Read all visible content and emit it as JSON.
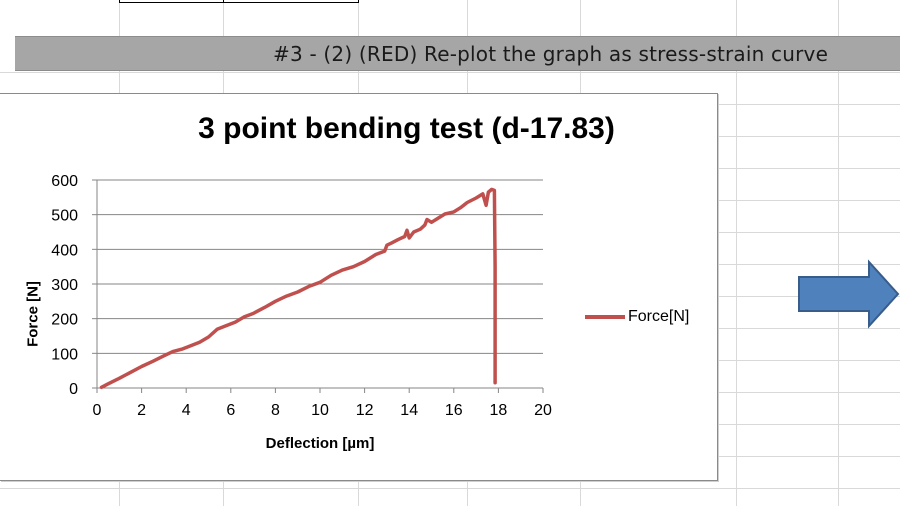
{
  "banner": {
    "text": "#3 - (2) (RED) Re-plot the graph as stress-strain curve"
  },
  "chart_data": {
    "type": "line",
    "title": "3 point bending test (d-17.83)",
    "xlabel": "Deflection [µm]",
    "ylabel": "Force [N]",
    "xlim": [
      0,
      20
    ],
    "ylim": [
      0,
      600
    ],
    "xticks": [
      0,
      2,
      4,
      6,
      8,
      10,
      12,
      14,
      16,
      18,
      20
    ],
    "yticks": [
      0,
      100,
      200,
      300,
      400,
      500,
      600
    ],
    "grid": "horizontal",
    "legend": "right",
    "series": [
      {
        "name": "Force[N]",
        "color": "#c0504d",
        "x": [
          0.2,
          0.5,
          1.0,
          1.5,
          2.0,
          2.5,
          3.0,
          3.4,
          3.8,
          4.2,
          4.6,
          5.0,
          5.4,
          5.8,
          6.2,
          6.6,
          7.0,
          7.5,
          8.0,
          8.5,
          9.0,
          9.5,
          10.0,
          10.5,
          11.0,
          11.5,
          12.0,
          12.5,
          12.9,
          13.0,
          13.2,
          13.5,
          13.8,
          13.9,
          14.0,
          14.2,
          14.5,
          14.7,
          14.8,
          15.0,
          15.3,
          15.6,
          16.0,
          16.3,
          16.6,
          17.0,
          17.3,
          17.45,
          17.55,
          17.7,
          17.82,
          17.85,
          17.85,
          17.85
        ],
        "y": [
          2,
          12,
          28,
          45,
          62,
          77,
          93,
          105,
          112,
          122,
          132,
          147,
          170,
          180,
          190,
          205,
          215,
          232,
          250,
          265,
          277,
          293,
          305,
          325,
          340,
          350,
          365,
          385,
          395,
          412,
          418,
          428,
          437,
          455,
          433,
          450,
          458,
          470,
          486,
          478,
          490,
          502,
          508,
          520,
          535,
          548,
          560,
          527,
          565,
          573,
          570,
          350,
          100,
          15
        ]
      }
    ]
  },
  "arrow": {
    "icon": "right-arrow-icon",
    "fill": "#4f81bd",
    "stroke": "#385d8a"
  }
}
